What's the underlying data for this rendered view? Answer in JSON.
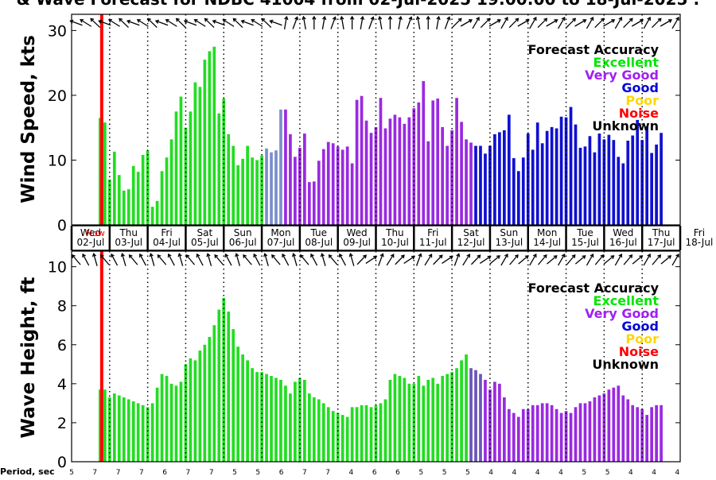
{
  "page": {
    "title": "& Wave Forecast for NDBC 41004 from 02-Jul-2025 19:00:00 to 18-Jul-2025 :"
  },
  "legend": {
    "title": "Forecast Accuracy",
    "items": [
      {
        "label": "Excellent",
        "color": "#00e600"
      },
      {
        "label": "Very Good",
        "color": "#a020f0"
      },
      {
        "label": "Good",
        "color": "#0000dd"
      },
      {
        "label": "Poor",
        "color": "#ffd700"
      },
      {
        "label": "Noise",
        "color": "#ff0000"
      },
      {
        "label": "Unknown",
        "color": "#000000"
      }
    ]
  },
  "colors": {
    "excellent": "#22dd22",
    "very_good": "#9a2ae0",
    "good": "#1010d0",
    "now_line": "#ff0000",
    "wind_blend": "#7a8fcc",
    "wave_blend": "#6a55b8"
  },
  "days": [
    {
      "dow": "Wed",
      "date": "02-Jul"
    },
    {
      "dow": "Thu",
      "date": "03-Jul"
    },
    {
      "dow": "Fri",
      "date": "04-Jul"
    },
    {
      "dow": "Sat",
      "date": "05-Jul"
    },
    {
      "dow": "Sun",
      "date": "06-Jul"
    },
    {
      "dow": "Mon",
      "date": "07-Jul"
    },
    {
      "dow": "Tue",
      "date": "08-Jul"
    },
    {
      "dow": "Wed",
      "date": "09-Jul"
    },
    {
      "dow": "Thu",
      "date": "10-Jul"
    },
    {
      "dow": "Fri",
      "date": "11-Jul"
    },
    {
      "dow": "Sat",
      "date": "12-Jul"
    },
    {
      "dow": "Sun",
      "date": "13-Jul"
    },
    {
      "dow": "Mon",
      "date": "14-Jul"
    },
    {
      "dow": "Tue",
      "date": "15-Jul"
    },
    {
      "dow": "Wed",
      "date": "16-Jul"
    },
    {
      "dow": "Thu",
      "date": "17-Jul"
    },
    {
      "dow": "Fri",
      "date": "18-Jul"
    }
  ],
  "now_label": "Now",
  "period": {
    "label": "Period, sec",
    "values": [
      5,
      7,
      7,
      7,
      6,
      7,
      7,
      5,
      5,
      6,
      7,
      7,
      4,
      6,
      6,
      5,
      5,
      5,
      4,
      4,
      4,
      4,
      5,
      5,
      4,
      4,
      4
    ]
  },
  "chart_data": [
    {
      "type": "bar",
      "panel": "wind",
      "title": "& Wave Forecast for NDBC 41004 from 02-Jul-2025 19:00:00 to 18-Jul-2025 :",
      "xlabel": "",
      "ylabel": "Wind Speed, kts",
      "ylim": [
        0,
        32.5
      ],
      "yticks": [
        0,
        10,
        20,
        30
      ],
      "grid": "vertical dotted lines at 00:00 each day",
      "legend_position": "top-right",
      "x_units": "hours since 02-Jul 00:00",
      "bar_step_hours": 3,
      "first_x": 18,
      "values": [
        16.5,
        15.8,
        7.0,
        11.3,
        7.7,
        5.3,
        5.5,
        9.1,
        8.2,
        10.8,
        11.5,
        2.8,
        3.7,
        8.3,
        10.4,
        13.2,
        17.5,
        19.8,
        15.0,
        17.5,
        22.0,
        21.3,
        25.5,
        26.8,
        27.5,
        17.2,
        19.5,
        14.0,
        12.2,
        9.2,
        10.2,
        12.2,
        10.4,
        10.0,
        10.7,
        11.8,
        11.2,
        11.5,
        17.8,
        17.8,
        14.0,
        10.5,
        11.9,
        14.1,
        6.6,
        6.7,
        9.9,
        11.7,
        12.8,
        12.6,
        12.1,
        11.6,
        12.1,
        9.5,
        19.3,
        19.9,
        16.1,
        14.2,
        15.1,
        19.6,
        14.9,
        16.4,
        17.0,
        16.6,
        15.6,
        16.6,
        18.0,
        18.9,
        22.2,
        12.9,
        19.2,
        19.5,
        15.1,
        12.2,
        14.6,
        19.6,
        15.9,
        13.2,
        12.7,
        12.2,
        12.2,
        11.0,
        12.2,
        14.0,
        14.3,
        14.6,
        17.0,
        10.3,
        8.3,
        10.4,
        14.1,
        11.6,
        15.8,
        12.6,
        14.5,
        15.1,
        14.9,
        16.7,
        16.6,
        18.2,
        15.5,
        11.9,
        12.1,
        13.7,
        11.2,
        14.1,
        13.2,
        13.9,
        13.1,
        10.5,
        9.5,
        13.0,
        13.8,
        16.2,
        13.1,
        15.2,
        11.1,
        12.4,
        14.2
      ],
      "categories_by_color": [
        {
          "from_index": 0,
          "to_index": 38,
          "accuracy": "Excellent"
        },
        {
          "from_index": 39,
          "to_index": 78,
          "accuracy": "Very Good"
        },
        {
          "from_index": 79,
          "to_index": 118,
          "accuracy": "Good"
        }
      ],
      "wind_direction_arrows": "one arrow per 6 hours along top edge"
    },
    {
      "type": "bar",
      "panel": "wave",
      "xlabel": "",
      "ylabel": "Wave Height, ft",
      "ylim": [
        0,
        10.8
      ],
      "yticks": [
        0,
        2,
        4,
        6,
        8,
        10
      ],
      "grid": "vertical dotted lines at 00:00 each day",
      "legend_position": "top-right",
      "x_units": "hours since 02-Jul 00:00",
      "bar_step_hours": 3,
      "first_x": 18,
      "values": [
        3.7,
        3.7,
        3.3,
        3.5,
        3.4,
        3.3,
        3.2,
        3.1,
        3.0,
        2.9,
        2.8,
        3.0,
        3.8,
        4.5,
        4.4,
        4.0,
        3.9,
        4.1,
        5.0,
        5.3,
        5.2,
        5.7,
        6.0,
        6.4,
        7.0,
        7.8,
        8.4,
        7.7,
        6.8,
        5.9,
        5.5,
        5.2,
        4.8,
        4.6,
        4.6,
        4.5,
        4.4,
        4.3,
        4.2,
        3.9,
        3.5,
        4.1,
        4.3,
        4.2,
        3.5,
        3.3,
        3.2,
        3.0,
        2.8,
        2.6,
        2.5,
        2.4,
        2.3,
        2.8,
        2.8,
        2.9,
        2.9,
        2.8,
        2.9,
        3.0,
        3.2,
        4.2,
        4.5,
        4.4,
        4.3,
        4.0,
        4.0,
        4.4,
        3.9,
        4.2,
        4.3,
        4.0,
        4.4,
        4.5,
        4.6,
        4.8,
        5.2,
        5.5,
        4.8,
        4.7,
        4.5,
        4.2,
        3.7,
        4.1,
        4.0,
        3.3,
        2.7,
        2.5,
        2.3,
        2.7,
        2.7,
        2.9,
        2.9,
        3.0,
        3.0,
        2.9,
        2.7,
        2.5,
        2.6,
        2.5,
        2.8,
        3.0,
        3.0,
        3.1,
        3.3,
        3.4,
        3.5,
        3.7,
        3.8,
        3.9,
        3.4,
        3.2,
        2.9,
        2.8,
        2.7,
        2.4,
        2.8,
        2.9,
        2.9
      ],
      "categories_by_color": [
        {
          "from_index": 0,
          "to_index": 80,
          "accuracy": "Excellent"
        },
        {
          "from_index": 81,
          "to_index": 118,
          "accuracy": "Very Good"
        }
      ],
      "wave_direction_arrows": "one arrow per 6 hours along top edge"
    }
  ]
}
